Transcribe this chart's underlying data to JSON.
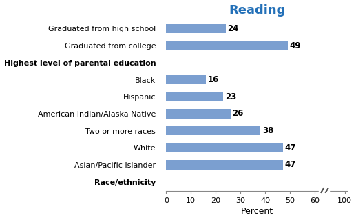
{
  "title": "Reading",
  "title_color": "#2370B8",
  "xlabel": "Percent",
  "categories": [
    "Race/ethnicity",
    "Asian/Pacific Islander",
    "White",
    "Two or more races",
    "American Indian/Alaska Native",
    "Hispanic",
    "Black",
    "Highest level of parental education",
    "Graduated from college",
    "Graduated from high school"
  ],
  "values": [
    null,
    47,
    47,
    38,
    26,
    23,
    16,
    null,
    49,
    24
  ],
  "bar_color": "#7B9FD0",
  "bar_labels": [
    "",
    "47",
    "47",
    "38",
    "26",
    "23",
    "16",
    "",
    "49",
    "24"
  ],
  "bold_categories": [
    "Race/ethnicity",
    "Highest level of parental education"
  ],
  "regular_xticks": [
    0,
    10,
    20,
    30,
    40,
    50,
    60
  ],
  "break_tick": 100,
  "background_color": "#ffffff",
  "bar_height": 0.55,
  "label_fontsize": 8.5,
  "tick_fontsize": 8.0,
  "title_fontsize": 13
}
